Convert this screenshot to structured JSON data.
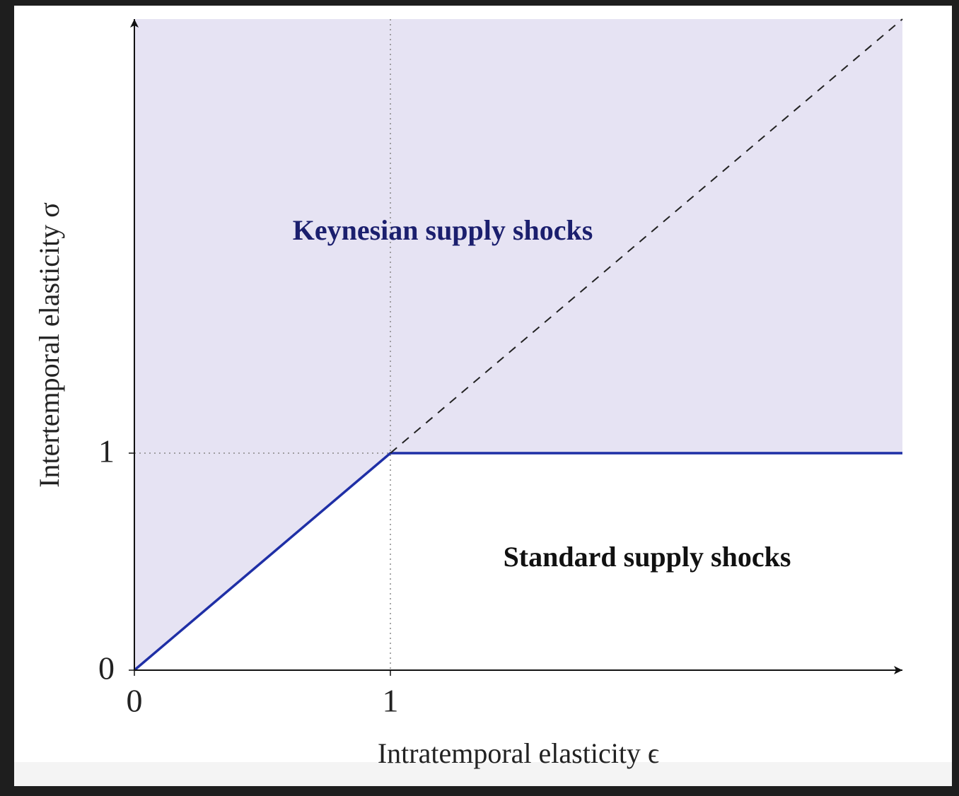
{
  "chart_data": {
    "type": "line",
    "xlabel": "Intratemporal elasticity ϵ",
    "ylabel": "Intertemporal elasticity σ",
    "xlim": [
      0,
      3
    ],
    "ylim": [
      0,
      3
    ],
    "xticks": [
      0,
      1
    ],
    "yticks": [
      0,
      1
    ],
    "grid": true,
    "series": [
      {
        "x": [
          0,
          1,
          3
        ],
        "values": [
          0,
          1,
          1
        ],
        "color": "#1f2fa6",
        "dash": "solid",
        "fill_above": "#e6e3f3"
      },
      {
        "x": [
          1,
          3
        ],
        "values": [
          1,
          3
        ],
        "color": "#222222",
        "dash": "dashed"
      }
    ],
    "annotations": [
      {
        "text": "Keynesian supply shocks",
        "color": "#1b1f6e"
      },
      {
        "text": "Standard supply shocks",
        "color": "#111111"
      }
    ]
  }
}
